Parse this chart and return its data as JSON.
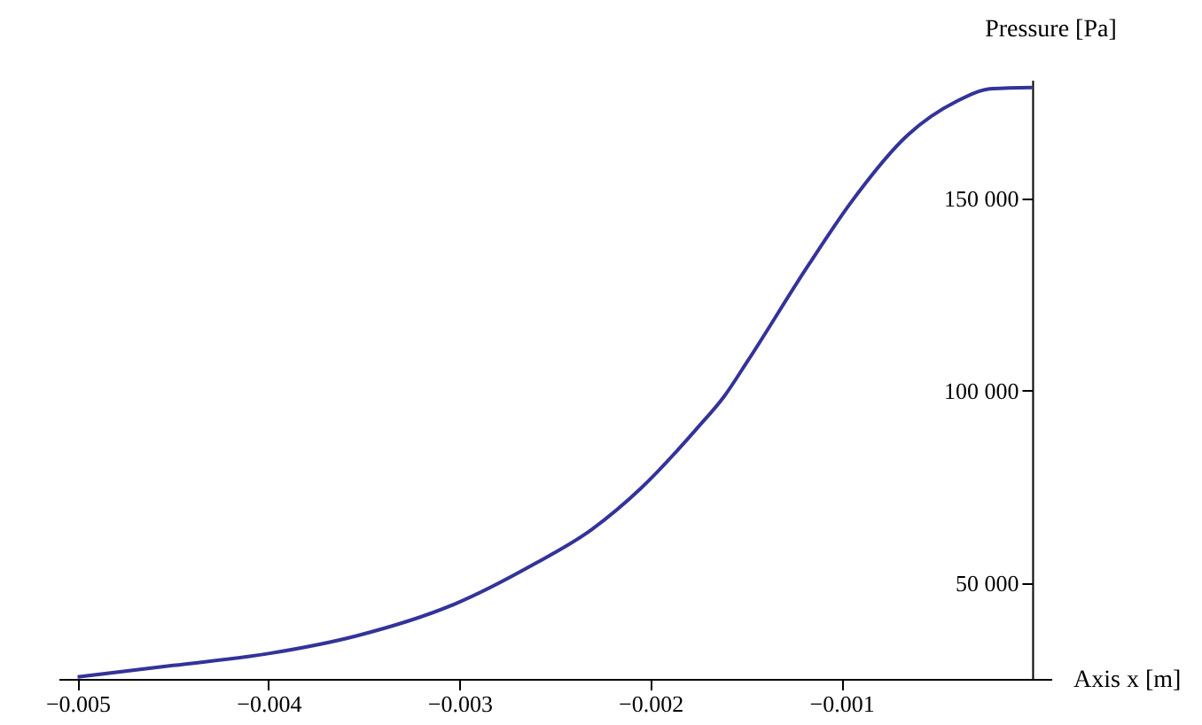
{
  "chart_data": {
    "type": "line",
    "xlabel": "Axis x [m]",
    "ylabel": "Pressure [Pa]",
    "x": [
      -0.005,
      -0.0045,
      -0.004,
      -0.00354,
      -0.00302,
      -0.00262,
      -0.00231,
      -0.00205,
      -0.00176,
      -0.00161,
      -0.00149,
      -0.00117,
      -0.00095,
      -0.00065,
      -0.0004,
      -0.00021,
      0
    ],
    "series": [
      {
        "color": "#33339a",
        "values": [
          25500,
          28500,
          31600,
          36200,
          44600,
          54600,
          63800,
          74600,
          90000,
          98800,
          107800,
          132900,
          149000,
          166700,
          175300,
          178700,
          179000
        ]
      }
    ],
    "xlim": [
      -0.0051,
      0.0001
    ],
    "xticks": [
      -0.005,
      -0.004,
      -0.003,
      -0.002,
      -0.001
    ],
    "ylim": [
      25000,
      181000
    ],
    "yticks": [
      {
        "value": 50000,
        "label": "50 000"
      },
      {
        "value": 100000,
        "label": "100 000"
      },
      {
        "value": 150000,
        "label": "150 000"
      }
    ],
    "grid": false,
    "marker": "none",
    "line_style": "solid"
  }
}
